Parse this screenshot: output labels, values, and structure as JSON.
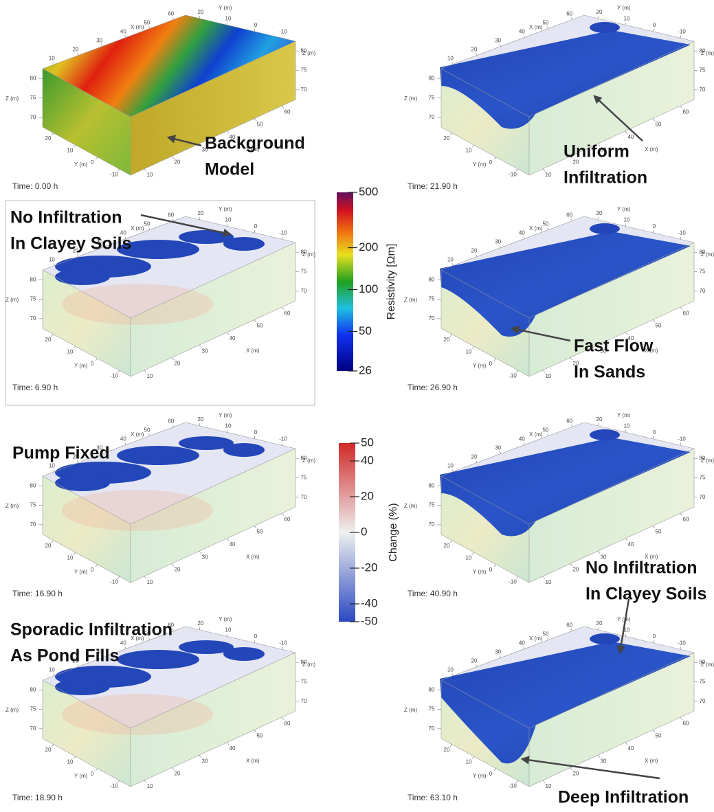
{
  "axes": {
    "x_label": "X (m)",
    "y_label": "Y (m)",
    "z_label": "Z (m)",
    "x_ticks": [
      10,
      20,
      30,
      40,
      50,
      60
    ],
    "y_ticks": [
      20,
      10,
      0,
      -10
    ],
    "z_ticks": [
      80,
      75,
      70
    ]
  },
  "panels": [
    {
      "time": "Time: 0.00 h",
      "annotations": [
        [
          "Background",
          "Model"
        ]
      ]
    },
    {
      "time": "Time: 6.90 h",
      "framed": true,
      "annotations": [
        [
          "No Infiltration",
          "In Clayey Soils"
        ]
      ]
    },
    {
      "time": "Time: 16.90 h",
      "annotations": [
        [
          "Pump Fixed"
        ]
      ]
    },
    {
      "time": "Time: 18.90 h",
      "annotations": [
        [
          "Sporadic Infiltration",
          "As Pond Fills"
        ]
      ]
    },
    {
      "time": "Time: 21.90 h",
      "annotations": [
        [
          "Uniform",
          "Infiltration"
        ]
      ]
    },
    {
      "time": "Time: 26.90 h",
      "annotations": [
        [
          "Fast Flow",
          "In Sands"
        ]
      ]
    },
    {
      "time": "Time: 40.90 h",
      "annotations": []
    },
    {
      "time": "Time: 63.10 h",
      "annotations": [
        [
          "No Infiltration",
          "In Clayey Soils"
        ],
        [
          "Deep Infiltration"
        ]
      ]
    }
  ],
  "colorbars": [
    {
      "label": "Resistivity [Ωm]",
      "log_scale": true,
      "lim": [
        26,
        500
      ],
      "ticks": [
        500,
        200,
        100,
        50,
        26
      ]
    },
    {
      "label": "Change (%)",
      "log_scale": false,
      "lim": [
        -50,
        50
      ],
      "ticks": [
        50,
        40,
        20,
        0,
        -20,
        -40,
        -50
      ]
    }
  ]
}
